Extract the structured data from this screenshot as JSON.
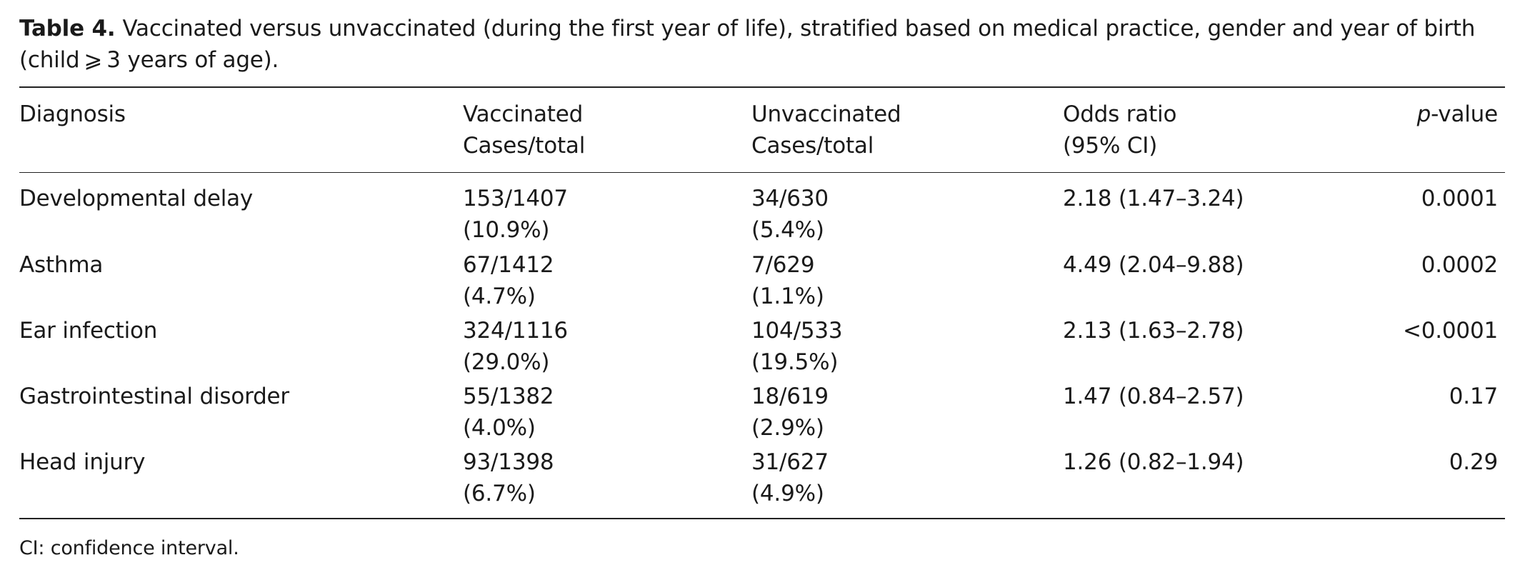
{
  "caption": {
    "label": "Table 4.",
    "text": "Vaccinated versus unvaccinated (during the first year of life), stratified based on medical practice, gender and year of birth (child ⩾ 3 years of age)."
  },
  "columns": {
    "diagnosis": "Diagnosis",
    "vaccinated_line1": "Vaccinated",
    "vaccinated_line2": "Cases/total",
    "unvaccinated_line1": "Unvaccinated",
    "unvaccinated_line2": "Cases/total",
    "odds_line1": "Odds ratio",
    "odds_line2": "(95% CI)",
    "p_italic": "p",
    "p_rest": "-value"
  },
  "rows": [
    {
      "diagnosis": "Developmental delay",
      "vaccinated_count": "153/1407",
      "vaccinated_pct": "(10.9%)",
      "unvaccinated_count": "34/630",
      "unvaccinated_pct": "(5.4%)",
      "odds_ratio": "2.18 (1.47–3.24)",
      "p_value": "0.0001"
    },
    {
      "diagnosis": "Asthma",
      "vaccinated_count": "67/1412",
      "vaccinated_pct": "(4.7%)",
      "unvaccinated_count": "7/629",
      "unvaccinated_pct": "(1.1%)",
      "odds_ratio": "4.49 (2.04–9.88)",
      "p_value": "0.0002"
    },
    {
      "diagnosis": "Ear infection",
      "vaccinated_count": "324/1116",
      "vaccinated_pct": "(29.0%)",
      "unvaccinated_count": "104/533",
      "unvaccinated_pct": "(19.5%)",
      "odds_ratio": "2.13 (1.63–2.78)",
      "p_value": "<0.0001"
    },
    {
      "diagnosis": "Gastrointestinal disorder",
      "vaccinated_count": "55/1382",
      "vaccinated_pct": "(4.0%)",
      "unvaccinated_count": "18/619",
      "unvaccinated_pct": "(2.9%)",
      "odds_ratio": "1.47 (0.84–2.57)",
      "p_value": "0.17"
    },
    {
      "diagnosis": "Head injury",
      "vaccinated_count": "93/1398",
      "vaccinated_pct": "(6.7%)",
      "unvaccinated_count": "31/627",
      "unvaccinated_pct": "(4.9%)",
      "odds_ratio": "1.26 (0.82–1.94)",
      "p_value": "0.29"
    }
  ],
  "footnote": "CI: confidence interval."
}
